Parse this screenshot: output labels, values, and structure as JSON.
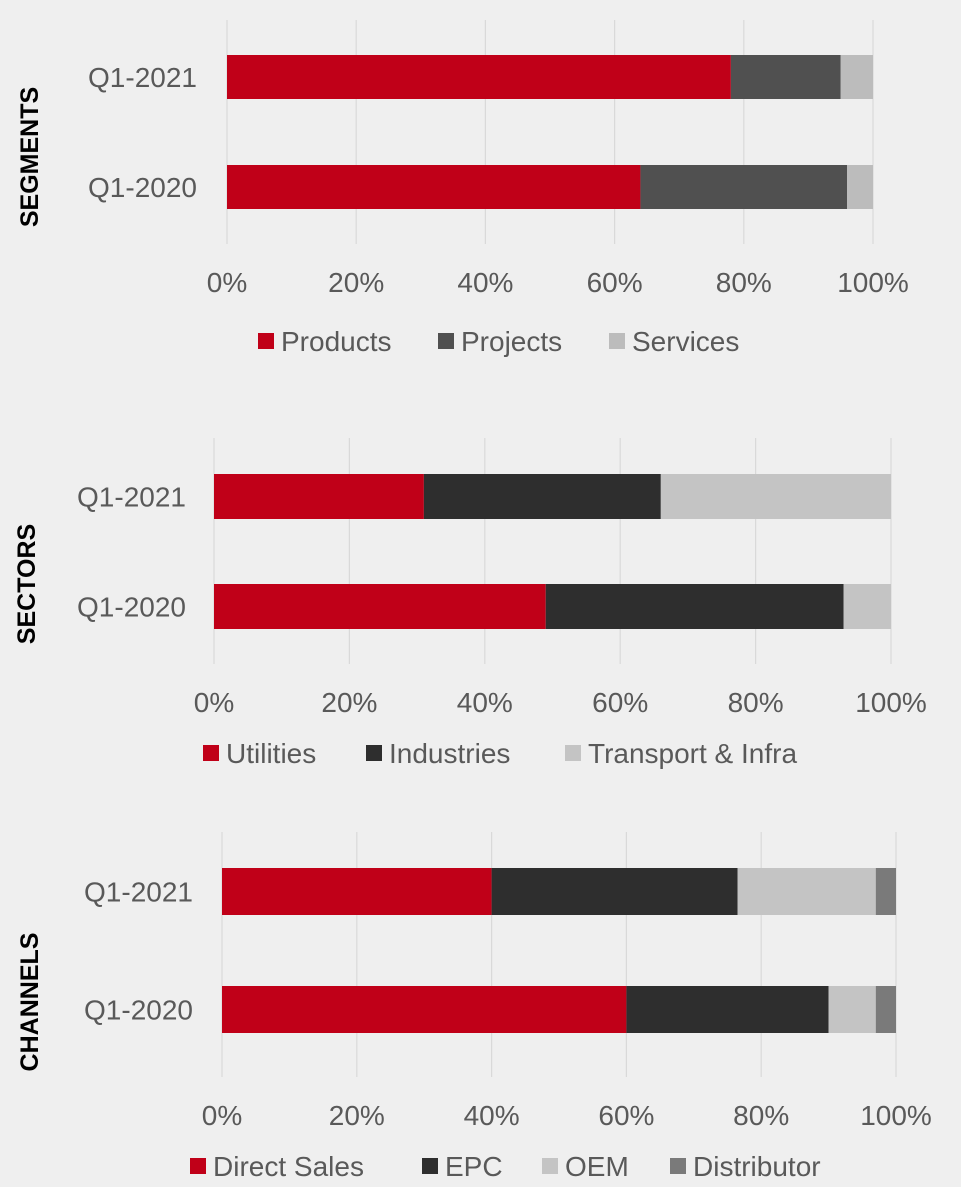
{
  "chart_data": [
    {
      "type": "bar",
      "orientation": "horizontal",
      "stacked": "percent",
      "title": "SEGMENTS",
      "categories": [
        "Q1-2021",
        "Q1-2020"
      ],
      "series": [
        {
          "name": "Products",
          "color": "#c00018",
          "values": [
            78,
            64
          ]
        },
        {
          "name": "Projects",
          "color": "#505050",
          "values": [
            17,
            32
          ]
        },
        {
          "name": "Services",
          "color": "#bcbcbc",
          "values": [
            5,
            4
          ]
        }
      ],
      "xlim": [
        0,
        100
      ],
      "xticks": [
        "0%",
        "20%",
        "40%",
        "60%",
        "80%",
        "100%"
      ],
      "grid": true,
      "legend": "bottom"
    },
    {
      "type": "bar",
      "orientation": "horizontal",
      "stacked": "percent",
      "title": "SECTORS",
      "categories": [
        "Q1-2021",
        "Q1-2020"
      ],
      "series": [
        {
          "name": "Utilities",
          "color": "#c00018",
          "values": [
            31,
            49
          ]
        },
        {
          "name": "Industries",
          "color": "#2e2e2e",
          "values": [
            35,
            44
          ]
        },
        {
          "name": "Transport & Infra",
          "color": "#c4c4c4",
          "values": [
            34,
            7
          ]
        }
      ],
      "xlim": [
        0,
        100
      ],
      "xticks": [
        "0%",
        "20%",
        "40%",
        "60%",
        "80%",
        "100%"
      ],
      "grid": true,
      "legend": "bottom"
    },
    {
      "type": "bar",
      "orientation": "horizontal",
      "stacked": "percent",
      "title": "CHANNELS",
      "categories": [
        "Q1-2021",
        "Q1-2020"
      ],
      "series": [
        {
          "name": "Direct Sales",
          "color": "#c00018",
          "values": [
            40,
            60
          ]
        },
        {
          "name": "EPC",
          "color": "#2e2e2e",
          "values": [
            36.5,
            30
          ]
        },
        {
          "name": "OEM",
          "color": "#c4c4c4",
          "values": [
            20.5,
            7
          ]
        },
        {
          "name": "Distributor",
          "color": "#7a7a7a",
          "values": [
            3,
            3
          ]
        }
      ],
      "xlim": [
        0,
        100
      ],
      "xticks": [
        "0%",
        "20%",
        "40%",
        "60%",
        "80%",
        "100%"
      ],
      "grid": true,
      "legend": "bottom"
    }
  ]
}
